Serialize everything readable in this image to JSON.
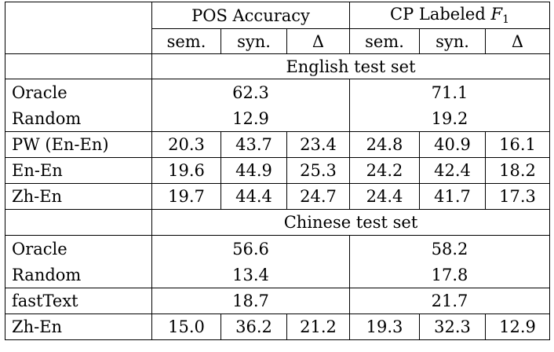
{
  "header": {
    "group1": "POS Accuracy",
    "group2_text": "CP Labeled",
    "group2_var": "F",
    "group2_sub": "1",
    "sub_cols": [
      "sem.",
      "syn.",
      "Δ",
      "sem.",
      "syn.",
      "Δ"
    ]
  },
  "sections": [
    {
      "title": "English test set",
      "rows": [
        {
          "label": "Oracle",
          "pos": "62.3",
          "cp": "71.1"
        },
        {
          "label": "Random",
          "pos": "12.9",
          "cp": "19.2"
        },
        {
          "label": "PW (En-En)",
          "values": [
            "20.3",
            "43.7",
            "23.4",
            "24.8",
            "40.9",
            "16.1"
          ]
        },
        {
          "label": "En-En",
          "values": [
            "19.6",
            "44.9",
            "25.3",
            "24.2",
            "42.4",
            "18.2"
          ]
        },
        {
          "label": "Zh-En",
          "values": [
            "19.7",
            "44.4",
            "24.7",
            "24.4",
            "41.7",
            "17.3"
          ]
        }
      ]
    },
    {
      "title": "Chinese test set",
      "rows": [
        {
          "label": "Oracle",
          "pos": "56.6",
          "cp": "58.2"
        },
        {
          "label": "Random",
          "pos": "13.4",
          "cp": "17.8"
        },
        {
          "label": "fastText",
          "pos": "18.7",
          "cp": "21.7"
        },
        {
          "label": "Zh-En",
          "values": [
            "15.0",
            "36.2",
            "21.2",
            "19.3",
            "32.3",
            "12.9"
          ]
        }
      ]
    }
  ]
}
